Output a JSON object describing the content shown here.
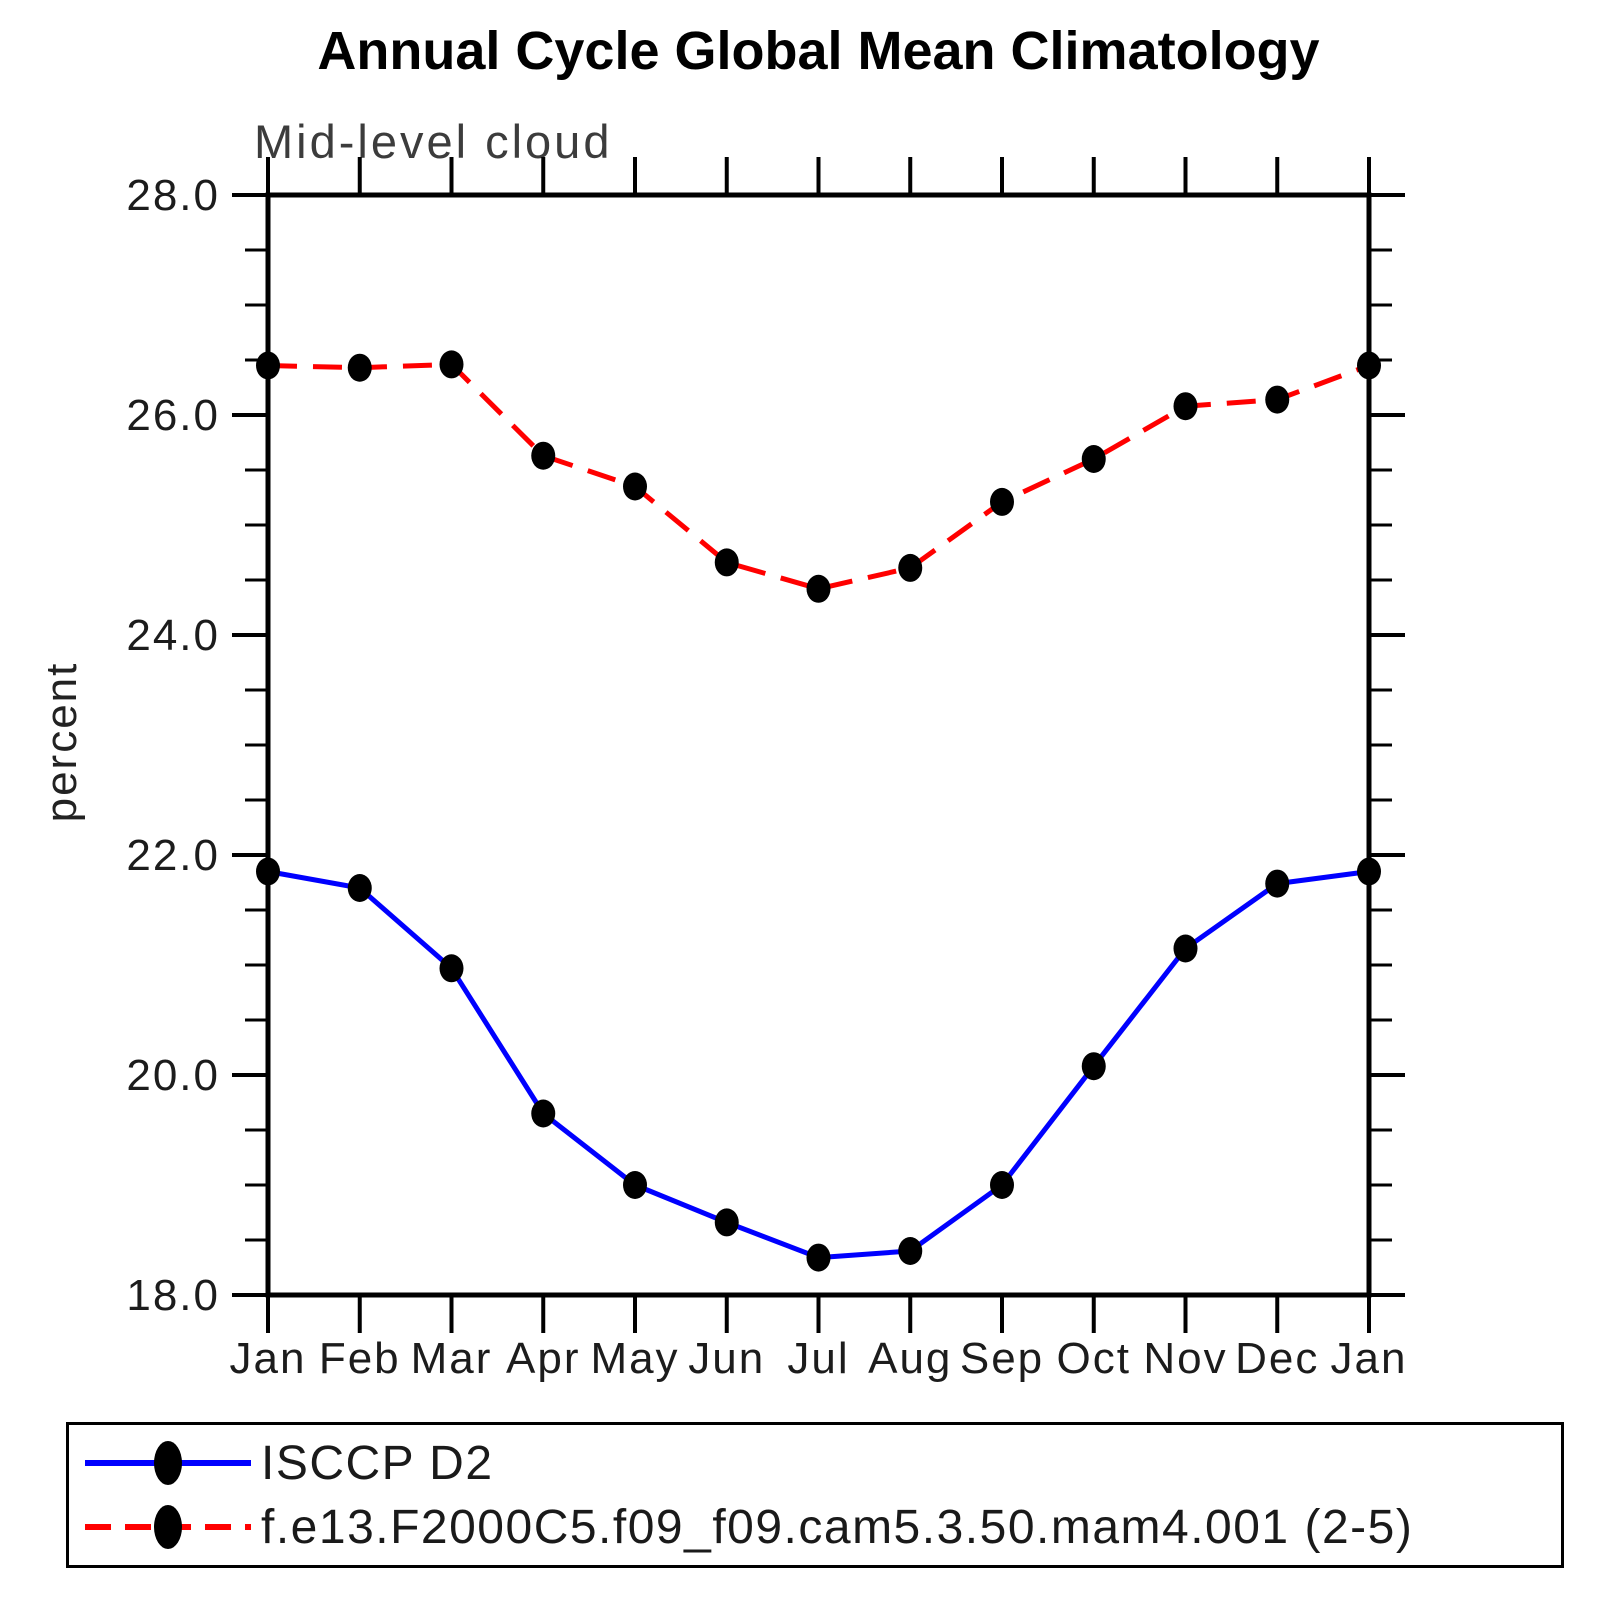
{
  "chart_data": {
    "type": "line",
    "title": "Annual Cycle Global Mean Climatology",
    "subtitle": "Mid-level cloud",
    "ylabel": "percent",
    "x_categories": [
      "Jan",
      "Feb",
      "Mar",
      "Apr",
      "May",
      "Jun",
      "Jul",
      "Aug",
      "Sep",
      "Oct",
      "Nov",
      "Dec",
      "Jan"
    ],
    "ylim": [
      18.0,
      28.0
    ],
    "y_major_ticks": [
      18.0,
      20.0,
      22.0,
      24.0,
      26.0,
      28.0
    ],
    "y_minor_step": 0.5,
    "grid": false,
    "legend_position": "bottom-box",
    "series": [
      {
        "name": "ISCCP D2",
        "color": "#0000ff",
        "style": "solid",
        "marker": "filled-circle",
        "marker_color": "#000000",
        "values": [
          21.85,
          21.7,
          20.97,
          19.65,
          19.0,
          18.66,
          18.34,
          18.4,
          19.0,
          20.08,
          21.15,
          21.74,
          21.85
        ]
      },
      {
        "name": "f.e13.F2000C5.f09_f09.cam5.3.50.mam4.001 (2-5)",
        "color": "#ff0000",
        "style": "dashed",
        "marker": "filled-circle",
        "marker_color": "#000000",
        "values": [
          26.45,
          26.43,
          26.46,
          25.63,
          25.35,
          24.66,
          24.42,
          24.61,
          25.21,
          25.6,
          26.08,
          26.14,
          26.45
        ]
      }
    ]
  }
}
